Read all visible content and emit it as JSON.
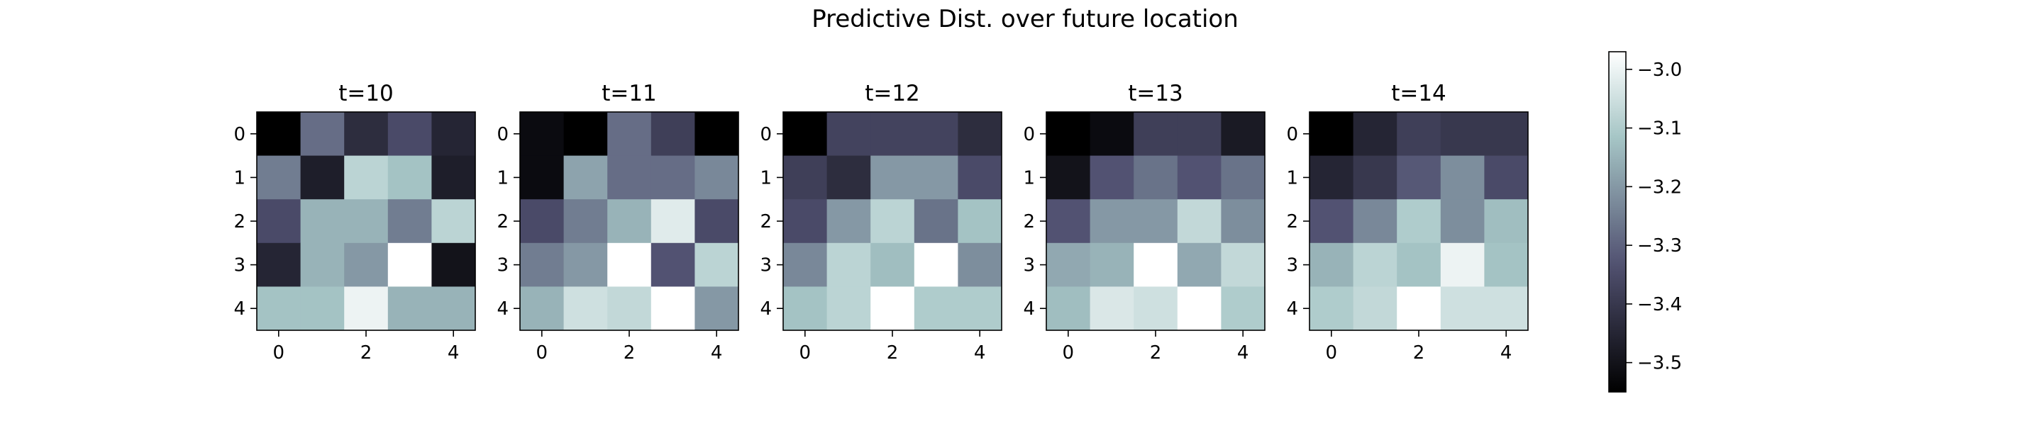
{
  "chart_data": {
    "type": "heatmap",
    "title": "Predictive Dist. over future location",
    "colormap": "bone",
    "colorbar": {
      "vmin": -3.55,
      "vmax": -2.97,
      "ticks": [
        -3.0,
        -3.1,
        -3.2,
        -3.3,
        -3.4,
        -3.5
      ],
      "tick_labels": [
        "−3.0",
        "−3.1",
        "−3.2",
        "−3.3",
        "−3.4",
        "−3.5"
      ]
    },
    "x_ticks": [
      0,
      2,
      4
    ],
    "y_ticks": [
      0,
      1,
      2,
      3,
      4
    ],
    "panels": [
      {
        "title": "t=10",
        "z": [
          [
            -3.55,
            -3.28,
            -3.43,
            -3.35,
            -3.45
          ],
          [
            -3.25,
            -3.47,
            -3.08,
            -3.12,
            -3.47
          ],
          [
            -3.35,
            -3.15,
            -3.15,
            -3.25,
            -3.08
          ],
          [
            -3.45,
            -3.15,
            -3.2,
            -2.97,
            -3.5
          ],
          [
            -3.12,
            -3.12,
            -3.0,
            -3.15,
            -3.15
          ]
        ]
      },
      {
        "title": "t=11",
        "z": [
          [
            -3.52,
            -3.55,
            -3.28,
            -3.38,
            -3.55
          ],
          [
            -3.52,
            -3.18,
            -3.28,
            -3.28,
            -3.23
          ],
          [
            -3.35,
            -3.25,
            -3.15,
            -3.02,
            -3.35
          ],
          [
            -3.25,
            -3.2,
            -2.97,
            -3.33,
            -3.08
          ],
          [
            -3.15,
            -3.05,
            -3.07,
            -2.97,
            -3.2
          ]
        ]
      },
      {
        "title": "t=12",
        "z": [
          [
            -3.55,
            -3.37,
            -3.37,
            -3.37,
            -3.43
          ],
          [
            -3.38,
            -3.43,
            -3.2,
            -3.2,
            -3.35
          ],
          [
            -3.35,
            -3.2,
            -3.08,
            -3.27,
            -3.12
          ],
          [
            -3.23,
            -3.08,
            -3.13,
            -2.97,
            -3.22
          ],
          [
            -3.12,
            -3.08,
            -2.97,
            -3.1,
            -3.1
          ]
        ]
      },
      {
        "title": "t=13",
        "z": [
          [
            -3.55,
            -3.52,
            -3.38,
            -3.38,
            -3.48
          ],
          [
            -3.5,
            -3.33,
            -3.27,
            -3.33,
            -3.27
          ],
          [
            -3.33,
            -3.2,
            -3.2,
            -3.07,
            -3.22
          ],
          [
            -3.17,
            -3.15,
            -2.97,
            -3.17,
            -3.07
          ],
          [
            -3.13,
            -3.03,
            -3.05,
            -2.97,
            -3.1
          ]
        ]
      },
      {
        "title": "t=14",
        "z": [
          [
            -3.55,
            -3.45,
            -3.38,
            -3.4,
            -3.4
          ],
          [
            -3.45,
            -3.4,
            -3.32,
            -3.22,
            -3.35
          ],
          [
            -3.33,
            -3.23,
            -3.1,
            -3.22,
            -3.13
          ],
          [
            -3.15,
            -3.08,
            -3.12,
            -3.0,
            -3.12
          ],
          [
            -3.1,
            -3.07,
            -2.97,
            -3.05,
            -3.05
          ]
        ]
      }
    ]
  }
}
